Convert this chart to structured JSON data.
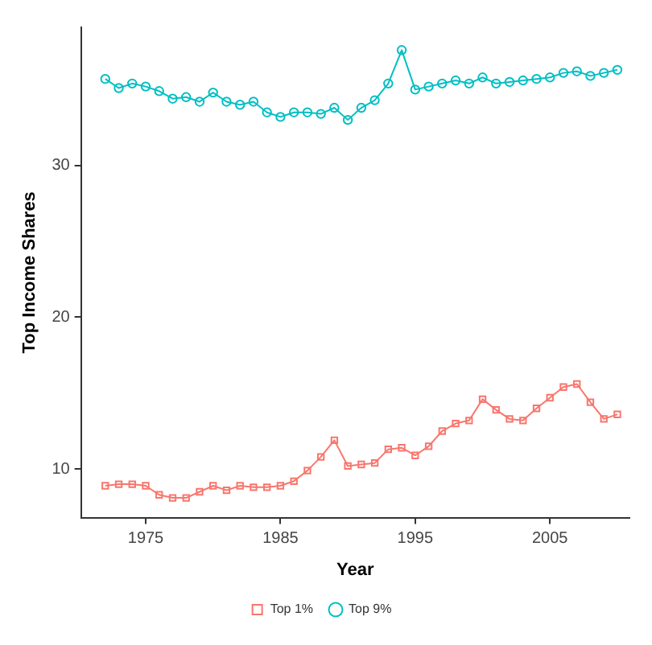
{
  "chart_data": {
    "type": "line",
    "xlabel": "Year",
    "ylabel": "Top Income Shares",
    "x": [
      1972,
      1973,
      1974,
      1975,
      1976,
      1977,
      1978,
      1979,
      1980,
      1981,
      1982,
      1983,
      1984,
      1985,
      1986,
      1987,
      1988,
      1989,
      1990,
      1991,
      1992,
      1993,
      1994,
      1995,
      1996,
      1997,
      1998,
      1999,
      2000,
      2001,
      2002,
      2003,
      2004,
      2005,
      2006,
      2007,
      2008,
      2009,
      2010
    ],
    "series": [
      {
        "name": "Top 1%",
        "color": "#f8766d",
        "marker": "square",
        "values": [
          8.9,
          9.0,
          9.0,
          8.9,
          8.3,
          8.1,
          8.1,
          8.5,
          8.9,
          8.6,
          8.9,
          8.8,
          8.8,
          8.9,
          9.2,
          9.9,
          10.8,
          11.9,
          10.2,
          10.3,
          10.4,
          11.3,
          11.4,
          10.9,
          11.5,
          12.5,
          13.0,
          13.2,
          14.6,
          13.9,
          13.3,
          13.2,
          14.0,
          14.7,
          15.4,
          15.6,
          14.4,
          13.3,
          13.6
        ]
      },
      {
        "name": "Top 9%",
        "color": "#00bfc4",
        "marker": "circle",
        "values": [
          35.7,
          35.1,
          35.4,
          35.2,
          34.9,
          34.4,
          34.5,
          34.2,
          34.8,
          34.2,
          34.0,
          34.2,
          33.5,
          33.2,
          33.5,
          33.5,
          33.4,
          33.8,
          33.0,
          33.8,
          34.3,
          35.4,
          37.6,
          35.0,
          35.2,
          35.4,
          35.6,
          35.4,
          35.8,
          35.4,
          35.5,
          35.6,
          35.7,
          35.8,
          36.1,
          36.2,
          35.9,
          36.1,
          36.3
        ]
      }
    ],
    "xlim": [
      1970.2,
      2010.9
    ],
    "xticks": [
      1975,
      1985,
      1995,
      2005
    ],
    "ylim": [
      6.8,
      39.1
    ],
    "yticks": [
      10,
      20,
      30
    ],
    "grid": false,
    "legend": "bottom",
    "line_style": "solid"
  }
}
